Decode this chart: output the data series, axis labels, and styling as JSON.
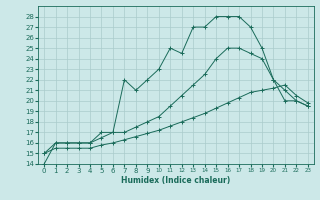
{
  "xlabel": "Humidex (Indice chaleur)",
  "bg_color": "#cce8e8",
  "line_color": "#1a6b5a",
  "grid_color": "#aacccc",
  "xlim": [
    -0.5,
    23.5
  ],
  "ylim": [
    14,
    29
  ],
  "yticks": [
    14,
    15,
    16,
    17,
    18,
    19,
    20,
    21,
    22,
    23,
    24,
    25,
    26,
    27,
    28
  ],
  "xticks": [
    0,
    1,
    2,
    3,
    4,
    5,
    6,
    7,
    8,
    9,
    10,
    11,
    12,
    13,
    14,
    15,
    16,
    17,
    18,
    19,
    20,
    21,
    22,
    23
  ],
  "series": [
    {
      "x": [
        0,
        1,
        2,
        3,
        4,
        5,
        6,
        7,
        8,
        9,
        10,
        11,
        12,
        13,
        14,
        15,
        16,
        17,
        18,
        19,
        20,
        21,
        22,
        23
      ],
      "y": [
        14,
        16,
        16,
        16,
        16,
        17,
        17,
        22,
        21,
        22,
        23,
        25,
        24.5,
        27,
        27,
        28,
        28,
        28,
        27,
        25,
        22,
        20,
        20,
        19.5
      ]
    },
    {
      "x": [
        0,
        1,
        2,
        3,
        4,
        5,
        6,
        7,
        8,
        9,
        10,
        11,
        12,
        13,
        14,
        15,
        16,
        17,
        18,
        19,
        20,
        21,
        22,
        23
      ],
      "y": [
        15,
        16,
        16,
        16,
        16,
        16.5,
        17,
        17,
        17.5,
        18,
        18.5,
        19.5,
        20.5,
        21.5,
        22.5,
        24,
        25,
        25,
        24.5,
        24,
        22,
        21,
        20,
        19.5
      ]
    },
    {
      "x": [
        0,
        1,
        2,
        3,
        4,
        5,
        6,
        7,
        8,
        9,
        10,
        11,
        12,
        13,
        14,
        15,
        16,
        17,
        18,
        19,
        20,
        21,
        22,
        23
      ],
      "y": [
        15,
        15.5,
        15.5,
        15.5,
        15.5,
        15.8,
        16,
        16.3,
        16.6,
        16.9,
        17.2,
        17.6,
        18,
        18.4,
        18.8,
        19.3,
        19.8,
        20.3,
        20.8,
        21.0,
        21.2,
        21.5,
        20.5,
        19.8
      ]
    }
  ]
}
